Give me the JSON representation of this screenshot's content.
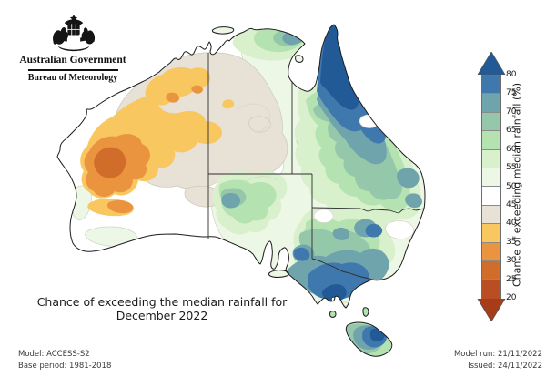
{
  "header": {
    "government": "Australian Government",
    "bureau": "Bureau of Meteorology"
  },
  "map": {
    "title_line1": "Chance of exceeding the median rainfall for",
    "title_line2": "December 2022"
  },
  "legend": {
    "axis_label": "Chance of exceeding median rainfall (%)",
    "ticks": [
      "80",
      "75",
      "70",
      "65",
      "60",
      "55",
      "50",
      "45",
      "40",
      "35",
      "30",
      "25",
      "20"
    ],
    "band_colors_top_to_bottom": [
      "#3e78ad",
      "#6fa4ad",
      "#95c7ab",
      "#b4e2b0",
      "#d8f0cb",
      "#edf7e5",
      "#ffffff",
      "#e7e1d6",
      "#f8c75f",
      "#ea9440",
      "#d06d2a",
      "#b94e22"
    ],
    "arrow_top_color": "#225a97",
    "arrow_bottom_color": "#a63c18"
  },
  "map_palette": {
    "gt80": "#225a97",
    "b75": "#3e78ad",
    "b70": "#6fa4ad",
    "b65": "#95c7ab",
    "b60": "#b4e2b0",
    "b55": "#d8f0cb",
    "b50": "#edf7e5",
    "b40": "#e7e1d6",
    "b35": "#f8c75f",
    "b30": "#ea9440",
    "b25": "#d06d2a"
  },
  "footer": {
    "model": "Model: ACCESS-S2",
    "base_period": "Base period: 1981-2018",
    "model_run": "Model run: 21/11/2022",
    "issued": "Issued: 24/11/2022"
  }
}
